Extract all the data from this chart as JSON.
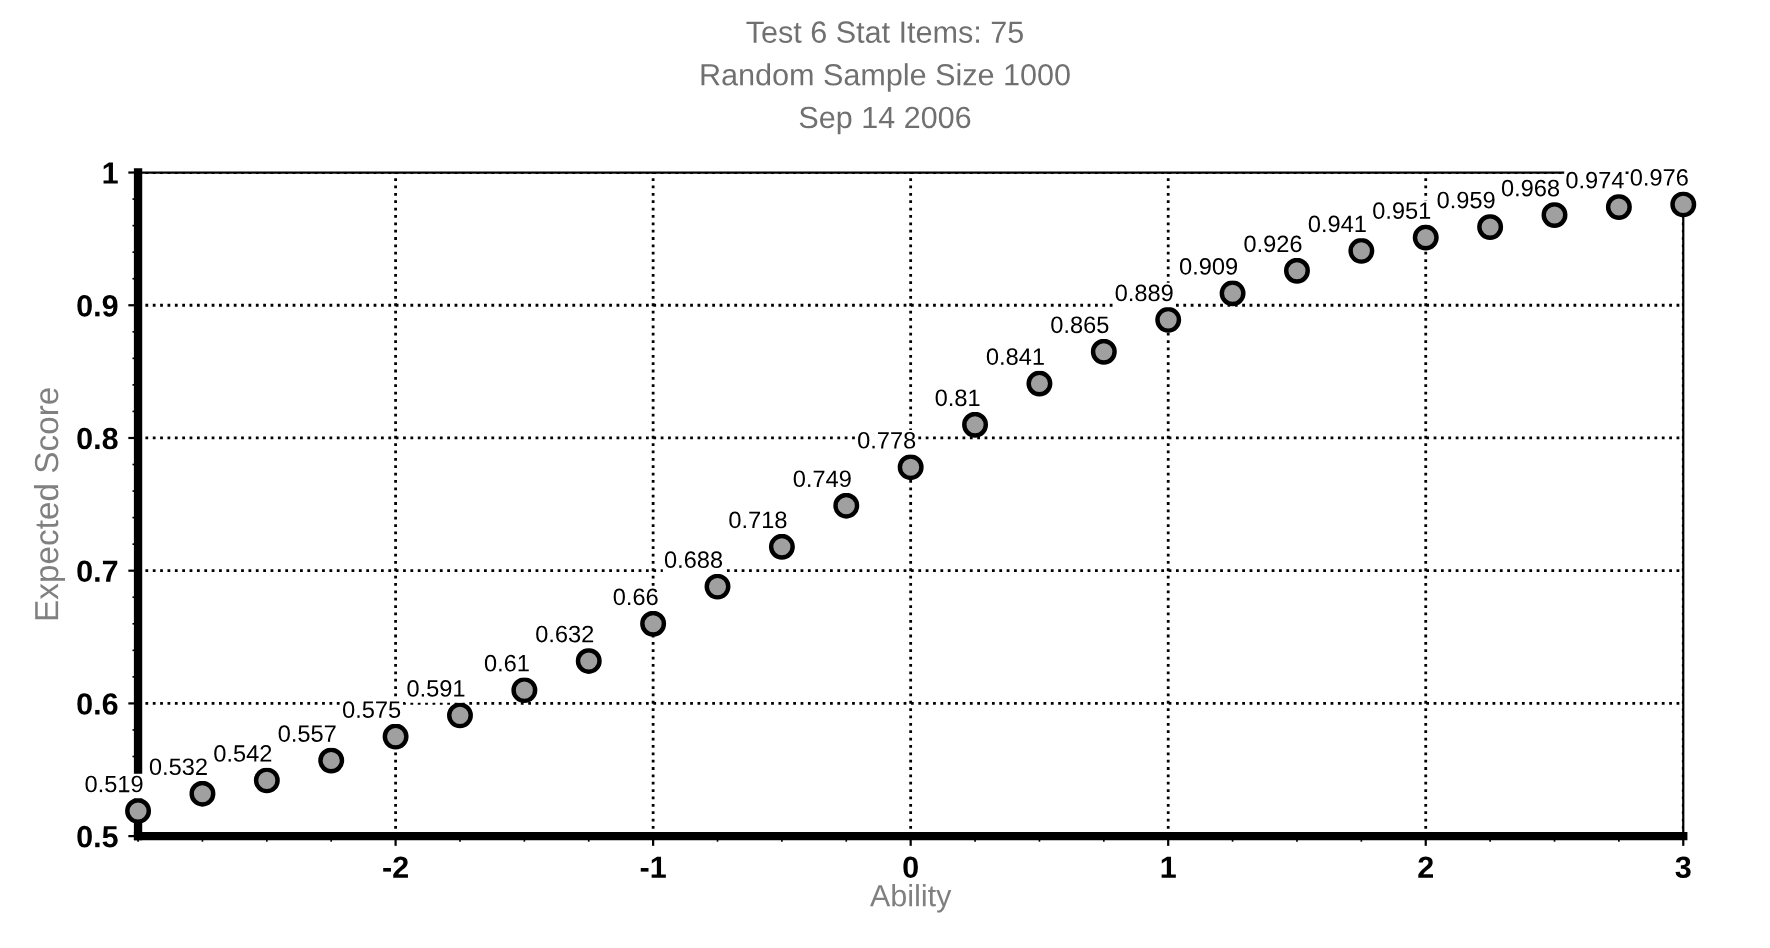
{
  "chart_data": {
    "type": "scatter",
    "title": "Test 6 Stat Items: 75",
    "subtitle": "Random Sample Size 1000",
    "annotations": [
      "Sep 14 2006"
    ],
    "xlabel": "Ability",
    "ylabel": "Expected Score",
    "x": [
      -3,
      -2.75,
      -2.5,
      -2.25,
      -2,
      -1.75,
      -1.5,
      -1.25,
      -1,
      -0.75,
      -0.5,
      -0.25,
      0,
      0.25,
      0.5,
      0.75,
      1,
      1.25,
      1.5,
      1.75,
      2,
      2.25,
      2.5,
      2.75,
      3
    ],
    "values": [
      0.519,
      0.532,
      0.542,
      0.557,
      0.575,
      0.591,
      0.61,
      0.632,
      0.66,
      0.688,
      0.718,
      0.749,
      0.778,
      0.81,
      0.841,
      0.865,
      0.889,
      0.909,
      0.926,
      0.941,
      0.951,
      0.959,
      0.968,
      0.974,
      0.976
    ],
    "color": "#a0a0a0",
    "marker": "circle",
    "data_labels": true,
    "xlim": [
      -3,
      3
    ],
    "xticks": [
      -2,
      -1,
      0,
      1,
      2,
      3
    ],
    "ylim": [
      0.5,
      1
    ],
    "yticks": [
      0.5,
      0.6,
      0.7,
      0.8,
      0.9,
      1
    ],
    "grid": true,
    "legend": false
  }
}
